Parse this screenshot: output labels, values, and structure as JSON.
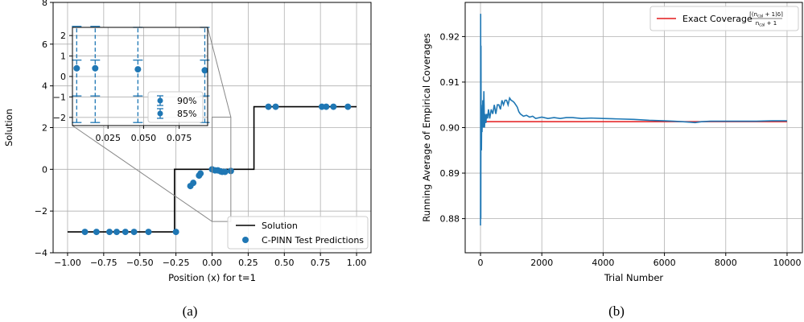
{
  "chart_data": [
    {
      "type": "scatter",
      "panel_label": "(a)",
      "xlabel": "Position (x) for t=1",
      "ylabel": "Solution",
      "xlim": [
        -1.1,
        1.1
      ],
      "ylim": [
        -4,
        8
      ],
      "xticks": [
        -1.0,
        -0.75,
        -0.5,
        -0.25,
        0.0,
        0.25,
        0.5,
        0.75,
        1.0
      ],
      "xtick_labels": [
        "−1.00",
        "−0.75",
        "−0.50",
        "−0.25",
        "0.00",
        "0.25",
        "0.50",
        "0.75",
        "1.00"
      ],
      "yticks": [
        -4,
        -2,
        0,
        2,
        4,
        6,
        8
      ],
      "ytick_labels": [
        "−4",
        "−2",
        "0",
        "2",
        "4",
        "6",
        "8"
      ],
      "grid": true,
      "legend_position": "lower-right",
      "colors": {
        "solution": "#000000",
        "predictions": "#1f77b4",
        "zoom_box": "#888888"
      },
      "series": [
        {
          "name": "Solution",
          "kind": "line",
          "x": [
            -1.0,
            -0.26,
            -0.26,
            0.29,
            0.29,
            1.0
          ],
          "y": [
            -3,
            -3,
            0,
            0,
            3,
            3
          ]
        },
        {
          "name": "C-PINN Test Predictions",
          "kind": "scatter",
          "x": [
            -0.88,
            -0.8,
            -0.71,
            -0.66,
            -0.6,
            -0.54,
            -0.44,
            -0.25,
            -0.15,
            -0.13,
            -0.09,
            -0.08,
            0.0,
            0.02,
            0.04,
            0.06,
            0.07,
            0.09,
            0.13,
            0.39,
            0.44,
            0.76,
            0.79,
            0.84,
            0.94
          ],
          "y": [
            -3,
            -3,
            -3,
            -3,
            -3,
            -3,
            -3,
            -3,
            -0.8,
            -0.65,
            -0.3,
            -0.2,
            0.0,
            -0.05,
            -0.05,
            -0.1,
            -0.12,
            -0.12,
            -0.08,
            3,
            3,
            3,
            3,
            3,
            3
          ]
        }
      ],
      "inset": {
        "xlim": [
          0.0,
          0.095
        ],
        "ylim": [
          -2.4,
          2.4
        ],
        "xticks": [
          0.025,
          0.05,
          0.075
        ],
        "xtick_labels": [
          "0.025",
          "0.050",
          "0.075"
        ],
        "yticks": [
          -2,
          -1,
          0,
          1,
          2
        ],
        "ytick_labels": [
          "−2",
          "−1",
          "0",
          "1",
          "2"
        ],
        "zoom_region": {
          "x": [
            0.0,
            0.13
          ],
          "y": [
            -2.5,
            2.5
          ]
        },
        "points": [
          {
            "x": 0.003,
            "y": 0.4,
            "ci90": [
              -2.25,
              2.45
            ],
            "ci85": [
              -0.95,
              0.8
            ]
          },
          {
            "x": 0.016,
            "y": 0.4,
            "ci90": [
              -2.25,
              2.45
            ],
            "ci85": [
              -0.95,
              0.8
            ]
          },
          {
            "x": 0.046,
            "y": 0.35,
            "ci90": [
              -2.25,
              2.4
            ],
            "ci85": [
              -0.95,
              0.8
            ]
          },
          {
            "x": 0.093,
            "y": 0.3,
            "ci90": [
              -2.25,
              2.4
            ],
            "ci85": [
              -0.95,
              0.8
            ]
          }
        ],
        "legend": [
          "90%",
          "85%"
        ]
      }
    },
    {
      "type": "line",
      "panel_label": "(b)",
      "xlabel": "Trial Number",
      "ylabel": "Running Average of Empirical Coverages",
      "xlim": [
        -500,
        10500
      ],
      "ylim": [
        0.8725,
        0.9275
      ],
      "xticks": [
        0,
        2000,
        4000,
        6000,
        8000,
        10000
      ],
      "xtick_labels": [
        "0",
        "2000",
        "4000",
        "6000",
        "8000",
        "10000"
      ],
      "yticks": [
        0.88,
        0.89,
        0.9,
        0.91,
        0.92
      ],
      "ytick_labels": [
        "0.88",
        "0.89",
        "0.90",
        "0.91",
        "0.92"
      ],
      "grid": true,
      "legend_position": "top-right",
      "colors": {
        "running_average": "#1f77b4",
        "exact": "#e41a1c"
      },
      "legend_label": "Exact Coverage",
      "legend_formula": {
        "numerator": "⌈(n",
        "num_sub": "cal",
        "num_tail": " + 1)δ⌉",
        "denominator": "n",
        "den_sub": "cal",
        "den_tail": " + 1"
      },
      "series": [
        {
          "name": "Exact Coverage",
          "x": [
            0,
            10000
          ],
          "y": [
            0.9013,
            0.9013
          ]
        },
        {
          "kind": "line",
          "x": [
            0,
            5,
            10,
            15,
            20,
            25,
            30,
            40,
            50,
            60,
            75,
            90,
            110,
            130,
            150,
            175,
            200,
            230,
            260,
            300,
            350,
            400,
            450,
            500,
            550,
            600,
            650,
            700,
            750,
            800,
            850,
            900,
            950,
            1000,
            1050,
            1100,
            1150,
            1200,
            1250,
            1300,
            1400,
            1500,
            1600,
            1700,
            1800,
            2000,
            2200,
            2400,
            2600,
            2800,
            3000,
            3300,
            3600,
            4000,
            4500,
            5000,
            5500,
            6000,
            6300,
            6600,
            6800,
            7000,
            7200,
            7500,
            8000,
            8500,
            9000,
            9500,
            10000
          ],
          "y": [
            0.8785,
            0.925,
            0.88,
            0.918,
            0.9,
            0.905,
            0.895,
            0.903,
            0.899,
            0.902,
            0.906,
            0.9,
            0.908,
            0.9,
            0.903,
            0.901,
            0.903,
            0.902,
            0.904,
            0.902,
            0.904,
            0.903,
            0.905,
            0.903,
            0.905,
            0.905,
            0.904,
            0.906,
            0.905,
            0.906,
            0.906,
            0.905,
            0.9065,
            0.906,
            0.9058,
            0.9055,
            0.905,
            0.9045,
            0.9035,
            0.903,
            0.9025,
            0.9027,
            0.9023,
            0.9025,
            0.902,
            0.9023,
            0.902,
            0.9022,
            0.902,
            0.9022,
            0.9022,
            0.902,
            0.9021,
            0.902,
            0.9019,
            0.9018,
            0.9016,
            0.9015,
            0.9014,
            0.9013,
            0.9012,
            0.9011,
            0.9013,
            0.9014,
            0.9014,
            0.9014,
            0.9014,
            0.9015,
            0.9015
          ]
        }
      ]
    }
  ]
}
